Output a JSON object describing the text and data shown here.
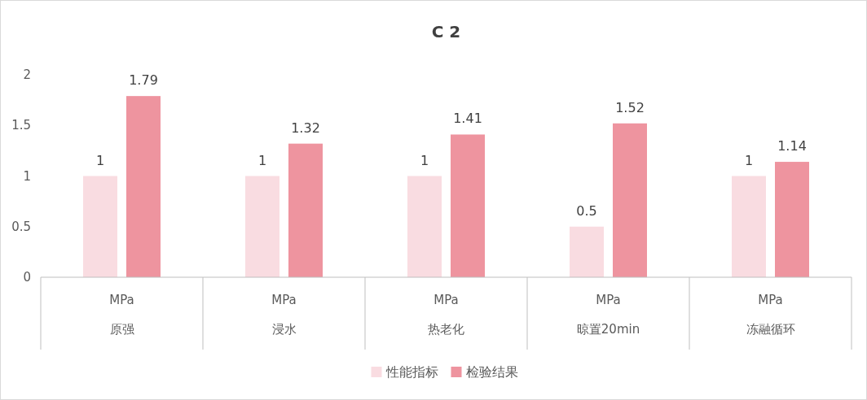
{
  "chart_data": {
    "type": "bar",
    "title": "C 2",
    "categories": [
      "MPa\n原强",
      "MPa\n浸水",
      "MPa\n热老化",
      "MPa\n晾置20min",
      "MPa\n冻融循环"
    ],
    "series": [
      {
        "name": "性能指标",
        "color": "#f9dce1",
        "values": [
          1,
          1,
          1,
          0.5,
          1
        ]
      },
      {
        "name": "检验结果",
        "color": "#ee949f",
        "values": [
          1.79,
          1.32,
          1.41,
          1.52,
          1.14
        ]
      }
    ],
    "ylim": [
      0,
      2
    ],
    "yticks": [
      0,
      0.5,
      1,
      1.5,
      2
    ],
    "data_labels": true,
    "legend": "bottom",
    "grid": false
  }
}
